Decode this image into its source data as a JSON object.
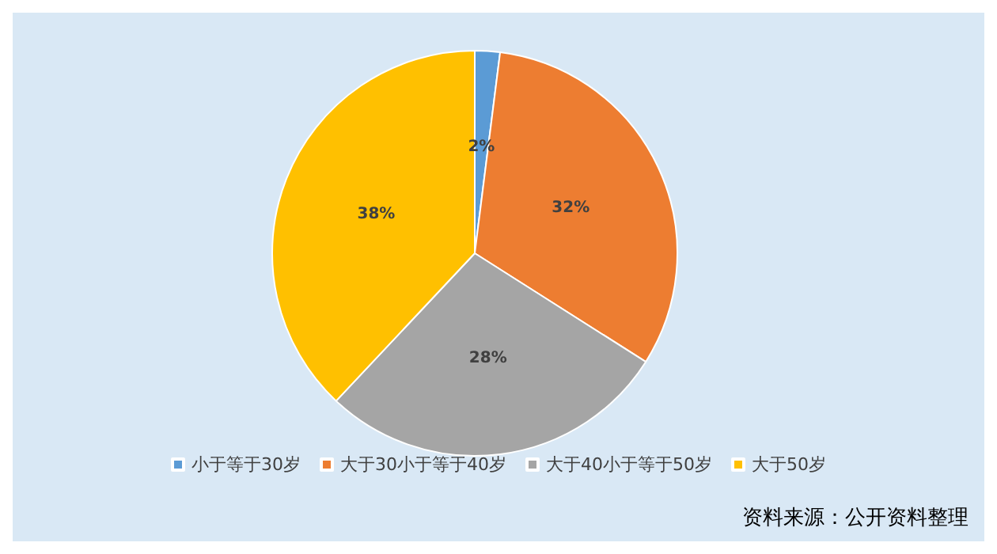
{
  "chart_data": {
    "type": "pie",
    "categories": [
      "小于等于30岁",
      "大于30小于等于40岁",
      "大于40小于等于50岁",
      "大于50岁"
    ],
    "values": [
      2,
      32,
      28,
      38
    ],
    "colors": [
      "#5b9bd5",
      "#ed7d31",
      "#a5a5a5",
      "#ffc000"
    ],
    "value_labels": [
      "2%",
      "32%",
      "28%",
      "38%"
    ],
    "legend": "bottom",
    "annotations": [
      "资料来源：公开资料整理"
    ]
  }
}
